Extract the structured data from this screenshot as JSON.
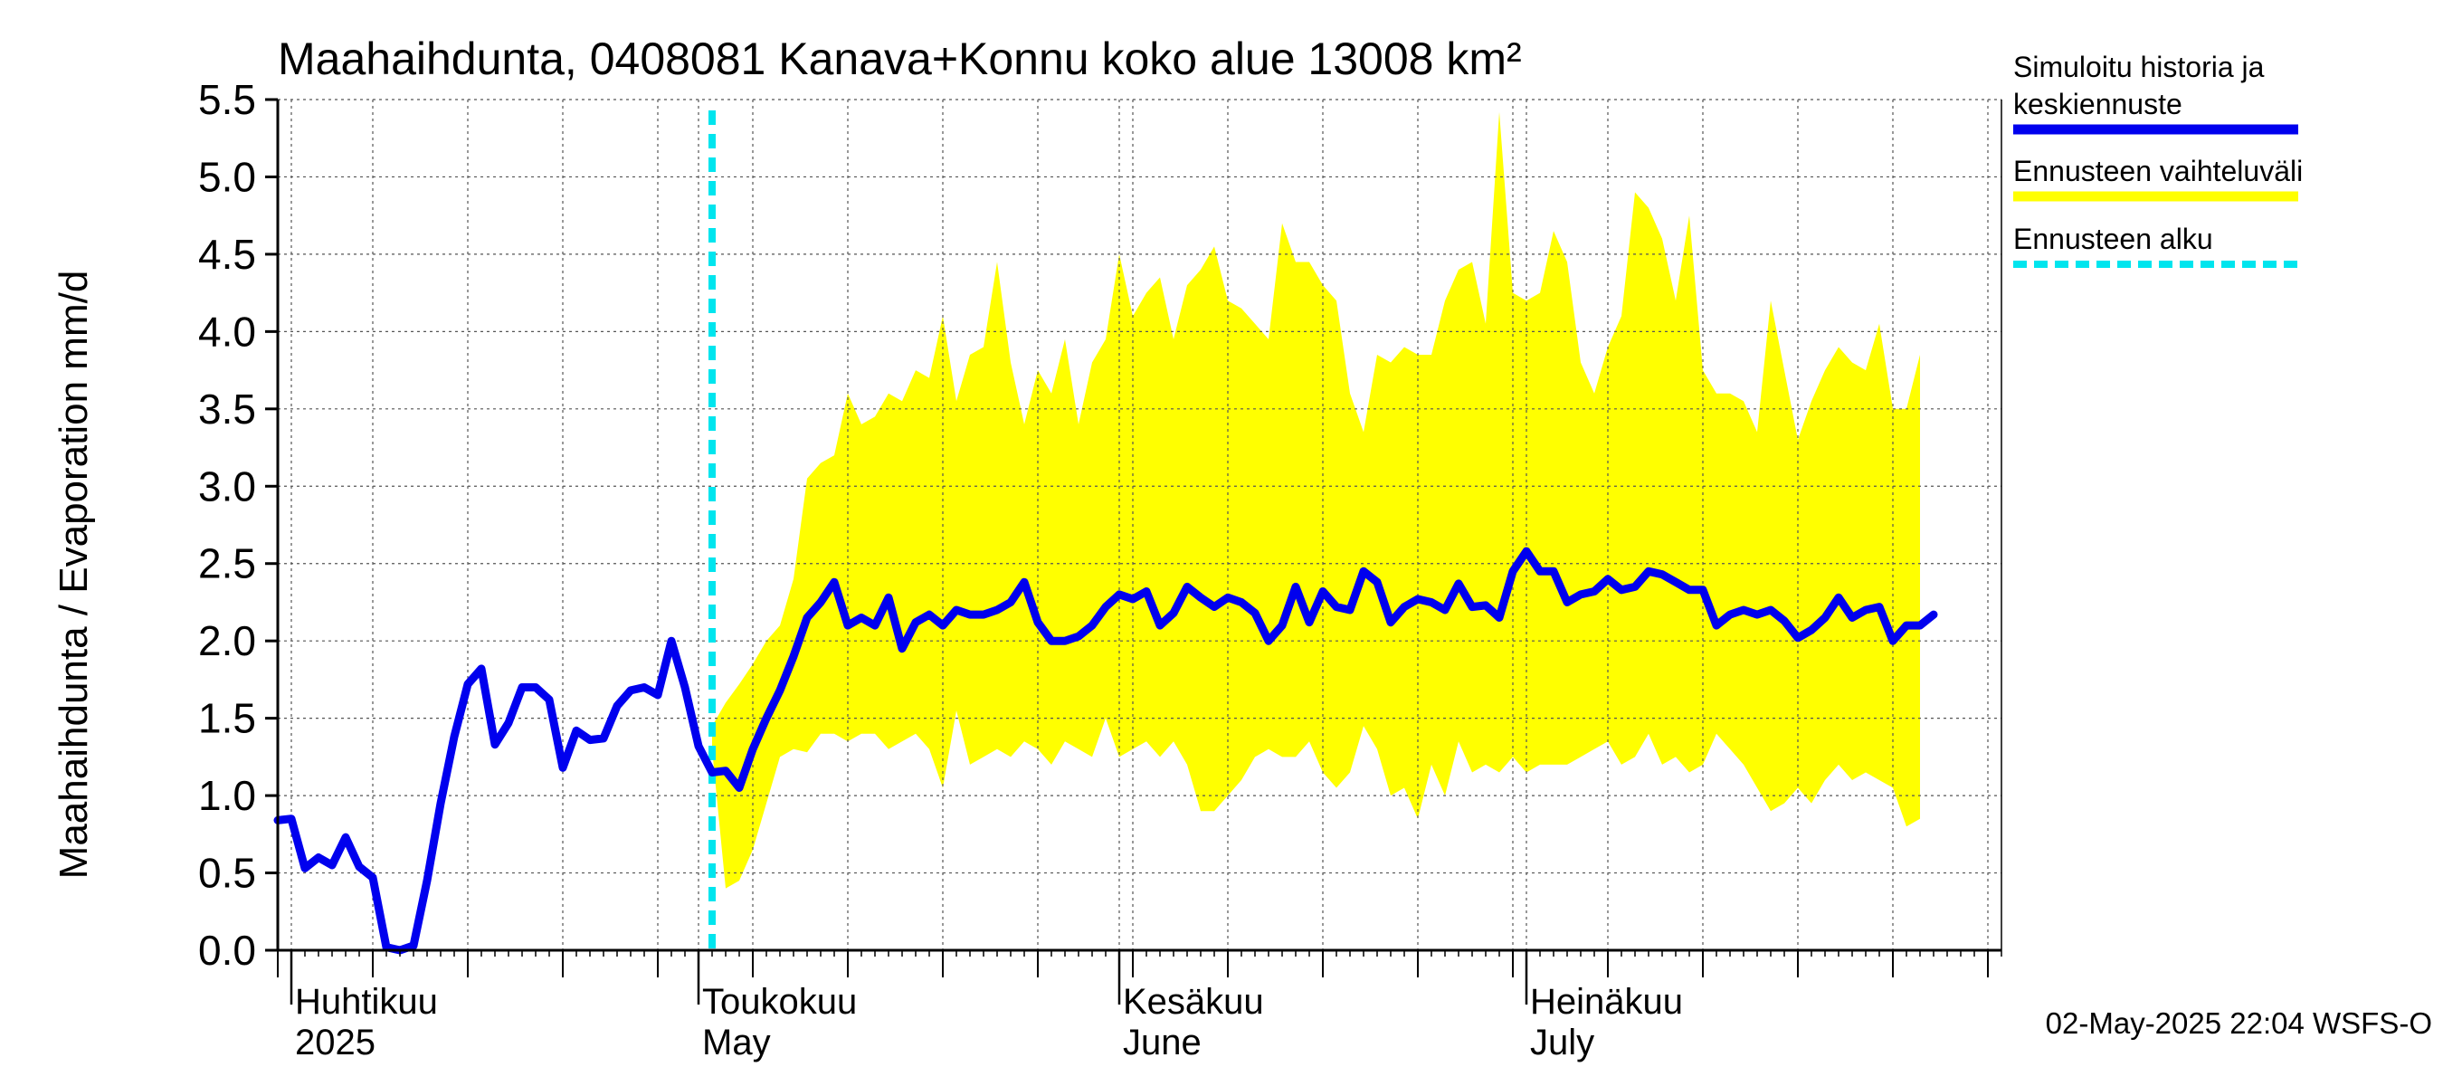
{
  "chart_data": {
    "type": "line",
    "title": "Maahaihdunta, 0408081 Kanava+Konnu koko alue 13008 km²",
    "ylabel": "Maahaihdunta / Evaporation   mm/d",
    "ylim": [
      0,
      5.5
    ],
    "yticks": [
      "0.0",
      "0.5",
      "1.0",
      "1.5",
      "2.0",
      "2.5",
      "3.0",
      "3.5",
      "4.0",
      "4.5",
      "5.0",
      "5.5"
    ],
    "xlim": [
      "2025-03-31",
      "2025-08-05"
    ],
    "grid": true,
    "legend_position": "right",
    "x_axis_labels": [
      {
        "date": "2025-04-01",
        "line1": "Huhtikuu",
        "line2": "2025"
      },
      {
        "date": "2025-05-01",
        "line1": "Toukokuu",
        "line2": "May"
      },
      {
        "date": "2025-06-01",
        "line1": "Kesäkuu",
        "line2": "June"
      },
      {
        "date": "2025-07-01",
        "line1": "Heinäkuu",
        "line2": "July"
      }
    ],
    "forecast_start": "2025-05-02",
    "series": [
      {
        "name": "Simuloitu historia ja keskiennuste",
        "color": "#0000ee",
        "points": [
          [
            "2025-03-31",
            0.84
          ],
          [
            "2025-04-01",
            0.85
          ],
          [
            "2025-04-02",
            0.53
          ],
          [
            "2025-04-03",
            0.6
          ],
          [
            "2025-04-04",
            0.55
          ],
          [
            "2025-04-05",
            0.73
          ],
          [
            "2025-04-06",
            0.54
          ],
          [
            "2025-04-07",
            0.47
          ],
          [
            "2025-04-08",
            0.02
          ],
          [
            "2025-04-09",
            0.0
          ],
          [
            "2025-04-10",
            0.03
          ],
          [
            "2025-04-11",
            0.45
          ],
          [
            "2025-04-12",
            0.95
          ],
          [
            "2025-04-13",
            1.38
          ],
          [
            "2025-04-14",
            1.72
          ],
          [
            "2025-04-15",
            1.82
          ],
          [
            "2025-04-16",
            1.33
          ],
          [
            "2025-04-17",
            1.47
          ],
          [
            "2025-04-18",
            1.7
          ],
          [
            "2025-04-19",
            1.7
          ],
          [
            "2025-04-20",
            1.62
          ],
          [
            "2025-04-21",
            1.18
          ],
          [
            "2025-04-22",
            1.42
          ],
          [
            "2025-04-23",
            1.36
          ],
          [
            "2025-04-24",
            1.37
          ],
          [
            "2025-04-25",
            1.58
          ],
          [
            "2025-04-26",
            1.68
          ],
          [
            "2025-04-27",
            1.7
          ],
          [
            "2025-04-28",
            1.65
          ],
          [
            "2025-04-29",
            2.0
          ],
          [
            "2025-04-30",
            1.7
          ],
          [
            "2025-05-01",
            1.32
          ],
          [
            "2025-05-02",
            1.15
          ],
          [
            "2025-05-03",
            1.16
          ],
          [
            "2025-05-04",
            1.05
          ],
          [
            "2025-05-05",
            1.3
          ],
          [
            "2025-05-06",
            1.5
          ],
          [
            "2025-05-07",
            1.68
          ],
          [
            "2025-05-08",
            1.9
          ],
          [
            "2025-05-09",
            2.15
          ],
          [
            "2025-05-10",
            2.25
          ],
          [
            "2025-05-11",
            2.38
          ],
          [
            "2025-05-12",
            2.1
          ],
          [
            "2025-05-13",
            2.15
          ],
          [
            "2025-05-14",
            2.1
          ],
          [
            "2025-05-15",
            2.28
          ],
          [
            "2025-05-16",
            1.95
          ],
          [
            "2025-05-17",
            2.12
          ],
          [
            "2025-05-18",
            2.17
          ],
          [
            "2025-05-19",
            2.1
          ],
          [
            "2025-05-20",
            2.2
          ],
          [
            "2025-05-21",
            2.17
          ],
          [
            "2025-05-22",
            2.17
          ],
          [
            "2025-05-23",
            2.2
          ],
          [
            "2025-05-24",
            2.25
          ],
          [
            "2025-05-25",
            2.38
          ],
          [
            "2025-05-26",
            2.12
          ],
          [
            "2025-05-27",
            2.0
          ],
          [
            "2025-05-28",
            2.0
          ],
          [
            "2025-05-29",
            2.03
          ],
          [
            "2025-05-30",
            2.1
          ],
          [
            "2025-05-31",
            2.22
          ],
          [
            "2025-06-01",
            2.3
          ],
          [
            "2025-06-02",
            2.27
          ],
          [
            "2025-06-03",
            2.32
          ],
          [
            "2025-06-04",
            2.1
          ],
          [
            "2025-06-05",
            2.18
          ],
          [
            "2025-06-06",
            2.35
          ],
          [
            "2025-06-07",
            2.28
          ],
          [
            "2025-06-08",
            2.22
          ],
          [
            "2025-06-09",
            2.28
          ],
          [
            "2025-06-10",
            2.25
          ],
          [
            "2025-06-11",
            2.18
          ],
          [
            "2025-06-12",
            2.0
          ],
          [
            "2025-06-13",
            2.1
          ],
          [
            "2025-06-14",
            2.35
          ],
          [
            "2025-06-15",
            2.12
          ],
          [
            "2025-06-16",
            2.32
          ],
          [
            "2025-06-17",
            2.22
          ],
          [
            "2025-06-18",
            2.2
          ],
          [
            "2025-06-19",
            2.45
          ],
          [
            "2025-06-20",
            2.38
          ],
          [
            "2025-06-21",
            2.12
          ],
          [
            "2025-06-22",
            2.22
          ],
          [
            "2025-06-23",
            2.27
          ],
          [
            "2025-06-24",
            2.25
          ],
          [
            "2025-06-25",
            2.2
          ],
          [
            "2025-06-26",
            2.37
          ],
          [
            "2025-06-27",
            2.22
          ],
          [
            "2025-06-28",
            2.23
          ],
          [
            "2025-06-29",
            2.15
          ],
          [
            "2025-06-30",
            2.45
          ],
          [
            "2025-07-01",
            2.58
          ],
          [
            "2025-07-02",
            2.45
          ],
          [
            "2025-07-03",
            2.45
          ],
          [
            "2025-07-04",
            2.25
          ],
          [
            "2025-07-05",
            2.3
          ],
          [
            "2025-07-06",
            2.32
          ],
          [
            "2025-07-07",
            2.4
          ],
          [
            "2025-07-08",
            2.33
          ],
          [
            "2025-07-09",
            2.35
          ],
          [
            "2025-07-10",
            2.45
          ],
          [
            "2025-07-11",
            2.43
          ],
          [
            "2025-07-12",
            2.38
          ],
          [
            "2025-07-13",
            2.33
          ],
          [
            "2025-07-14",
            2.33
          ],
          [
            "2025-07-15",
            2.1
          ],
          [
            "2025-07-16",
            2.17
          ],
          [
            "2025-07-17",
            2.2
          ],
          [
            "2025-07-18",
            2.17
          ],
          [
            "2025-07-19",
            2.2
          ],
          [
            "2025-07-20",
            2.13
          ],
          [
            "2025-07-21",
            2.02
          ],
          [
            "2025-07-22",
            2.07
          ],
          [
            "2025-07-23",
            2.15
          ],
          [
            "2025-07-24",
            2.28
          ],
          [
            "2025-07-25",
            2.15
          ],
          [
            "2025-07-26",
            2.2
          ],
          [
            "2025-07-27",
            2.22
          ],
          [
            "2025-07-28",
            2.0
          ],
          [
            "2025-07-29",
            2.1
          ],
          [
            "2025-07-30",
            2.1
          ],
          [
            "2025-07-31",
            2.17
          ]
        ]
      }
    ],
    "range_band": {
      "name": "Ennusteen vaihteluväli",
      "color": "#ffff00",
      "points": [
        [
          "2025-05-02",
          1.3,
          1.45
        ],
        [
          "2025-05-03",
          0.4,
          1.6
        ],
        [
          "2025-05-04",
          0.45,
          1.72
        ],
        [
          "2025-05-05",
          0.65,
          1.85
        ],
        [
          "2025-05-06",
          0.95,
          2.0
        ],
        [
          "2025-05-07",
          1.25,
          2.1
        ],
        [
          "2025-05-08",
          1.3,
          2.4
        ],
        [
          "2025-05-09",
          1.28,
          3.05
        ],
        [
          "2025-05-10",
          1.4,
          3.15
        ],
        [
          "2025-05-11",
          1.4,
          3.2
        ],
        [
          "2025-05-12",
          1.35,
          3.6
        ],
        [
          "2025-05-13",
          1.4,
          3.4
        ],
        [
          "2025-05-14",
          1.4,
          3.45
        ],
        [
          "2025-05-15",
          1.3,
          3.6
        ],
        [
          "2025-05-16",
          1.35,
          3.55
        ],
        [
          "2025-05-17",
          1.4,
          3.75
        ],
        [
          "2025-05-18",
          1.3,
          3.7
        ],
        [
          "2025-05-19",
          1.05,
          4.1
        ],
        [
          "2025-05-20",
          1.55,
          3.55
        ],
        [
          "2025-05-21",
          1.2,
          3.85
        ],
        [
          "2025-05-22",
          1.25,
          3.9
        ],
        [
          "2025-05-23",
          1.3,
          4.45
        ],
        [
          "2025-05-24",
          1.25,
          3.8
        ],
        [
          "2025-05-25",
          1.35,
          3.4
        ],
        [
          "2025-05-26",
          1.3,
          3.75
        ],
        [
          "2025-05-27",
          1.2,
          3.6
        ],
        [
          "2025-05-28",
          1.35,
          3.95
        ],
        [
          "2025-05-29",
          1.3,
          3.4
        ],
        [
          "2025-05-30",
          1.25,
          3.8
        ],
        [
          "2025-05-31",
          1.5,
          3.95
        ],
        [
          "2025-06-01",
          1.25,
          4.5
        ],
        [
          "2025-06-02",
          1.3,
          4.1
        ],
        [
          "2025-06-03",
          1.35,
          4.25
        ],
        [
          "2025-06-04",
          1.25,
          4.35
        ],
        [
          "2025-06-05",
          1.35,
          3.95
        ],
        [
          "2025-06-06",
          1.2,
          4.3
        ],
        [
          "2025-06-07",
          0.9,
          4.4
        ],
        [
          "2025-06-08",
          0.9,
          4.55
        ],
        [
          "2025-06-09",
          1.0,
          4.2
        ],
        [
          "2025-06-10",
          1.1,
          4.15
        ],
        [
          "2025-06-11",
          1.25,
          4.05
        ],
        [
          "2025-06-12",
          1.3,
          3.95
        ],
        [
          "2025-06-13",
          1.25,
          4.7
        ],
        [
          "2025-06-14",
          1.25,
          4.45
        ],
        [
          "2025-06-15",
          1.35,
          4.45
        ],
        [
          "2025-06-16",
          1.15,
          4.3
        ],
        [
          "2025-06-17",
          1.05,
          4.2
        ],
        [
          "2025-06-18",
          1.15,
          3.6
        ],
        [
          "2025-06-19",
          1.45,
          3.35
        ],
        [
          "2025-06-20",
          1.3,
          3.85
        ],
        [
          "2025-06-21",
          1.0,
          3.8
        ],
        [
          "2025-06-22",
          1.05,
          3.9
        ],
        [
          "2025-06-23",
          0.85,
          3.85
        ],
        [
          "2025-06-24",
          1.2,
          3.85
        ],
        [
          "2025-06-25",
          1.0,
          4.2
        ],
        [
          "2025-06-26",
          1.35,
          4.4
        ],
        [
          "2025-06-27",
          1.15,
          4.45
        ],
        [
          "2025-06-28",
          1.2,
          4.05
        ],
        [
          "2025-06-29",
          1.15,
          5.42
        ],
        [
          "2025-06-30",
          1.25,
          4.25
        ],
        [
          "2025-07-01",
          1.15,
          4.2
        ],
        [
          "2025-07-02",
          1.2,
          4.25
        ],
        [
          "2025-07-03",
          1.2,
          4.65
        ],
        [
          "2025-07-04",
          1.2,
          4.45
        ],
        [
          "2025-07-05",
          1.25,
          3.8
        ],
        [
          "2025-07-06",
          1.3,
          3.6
        ],
        [
          "2025-07-07",
          1.35,
          3.9
        ],
        [
          "2025-07-08",
          1.2,
          4.1
        ],
        [
          "2025-07-09",
          1.25,
          4.9
        ],
        [
          "2025-07-10",
          1.4,
          4.8
        ],
        [
          "2025-07-11",
          1.2,
          4.6
        ],
        [
          "2025-07-12",
          1.25,
          4.2
        ],
        [
          "2025-07-13",
          1.15,
          4.75
        ],
        [
          "2025-07-14",
          1.2,
          3.75
        ],
        [
          "2025-07-15",
          1.4,
          3.6
        ],
        [
          "2025-07-16",
          1.3,
          3.6
        ],
        [
          "2025-07-17",
          1.2,
          3.55
        ],
        [
          "2025-07-18",
          1.05,
          3.35
        ],
        [
          "2025-07-19",
          0.9,
          4.2
        ],
        [
          "2025-07-20",
          0.95,
          3.75
        ],
        [
          "2025-07-21",
          1.05,
          3.3
        ],
        [
          "2025-07-22",
          0.95,
          3.55
        ],
        [
          "2025-07-23",
          1.1,
          3.75
        ],
        [
          "2025-07-24",
          1.2,
          3.9
        ],
        [
          "2025-07-25",
          1.1,
          3.8
        ],
        [
          "2025-07-26",
          1.15,
          3.75
        ],
        [
          "2025-07-27",
          1.1,
          4.05
        ],
        [
          "2025-07-28",
          1.05,
          3.5
        ],
        [
          "2025-07-29",
          0.8,
          3.5
        ],
        [
          "2025-07-30",
          0.85,
          3.85
        ]
      ]
    },
    "legend": [
      {
        "name": "Simuloitu historia ja keskiennuste",
        "lines": [
          "Simuloitu historia ja",
          "keskiennuste"
        ],
        "color": "#0000ee",
        "style": "solid"
      },
      {
        "name": "Ennusteen vaihteluväli",
        "lines": [
          "Ennusteen vaihteluväli"
        ],
        "color": "#ffff00",
        "style": "solid"
      },
      {
        "name": "Ennusteen alku",
        "lines": [
          "Ennusteen alku"
        ],
        "color": "#00e5ee",
        "style": "dashed"
      }
    ],
    "footer": "02-May-2025 22:04 WSFS-O"
  }
}
